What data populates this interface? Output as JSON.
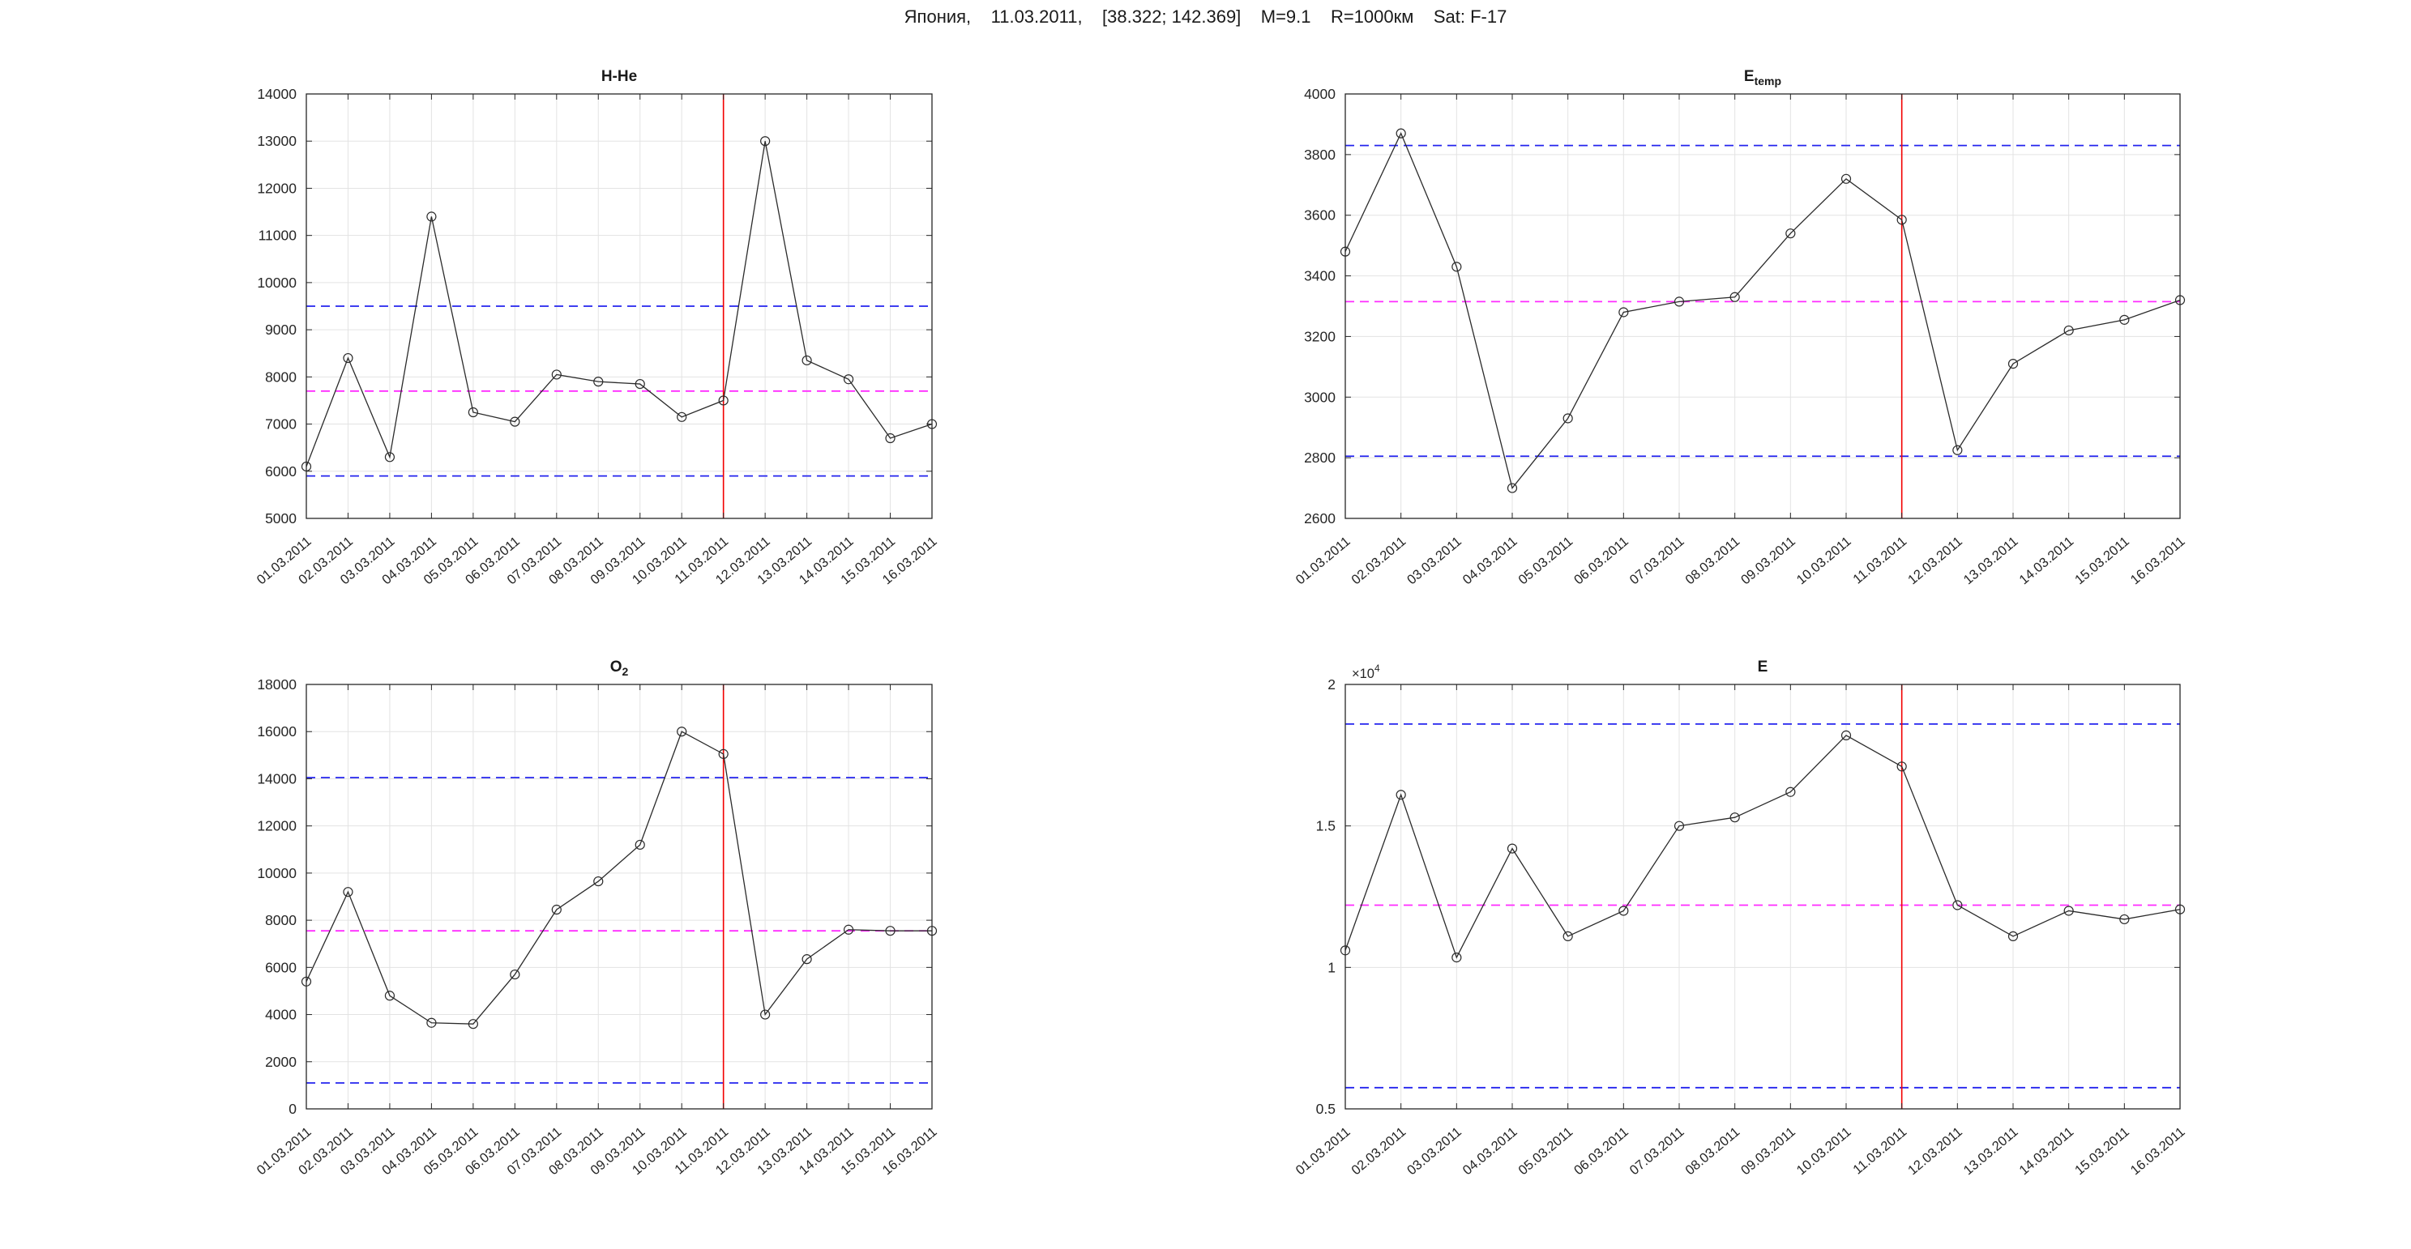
{
  "header": {
    "title": "Япония,    11.03.2011,    [38.322; 142.369]    M=9.1    R=1000км    Sat: F-17"
  },
  "event": {
    "date": "11.03.2011"
  },
  "colors": {
    "series": "#2b2b2b",
    "bound_line": "#2424ee",
    "mean_line": "#ff2bff",
    "event_line": "#f20000",
    "grid": "#e3e3e3",
    "axis": "#262626",
    "text": "#262626"
  },
  "dates": [
    "01.03.2011",
    "02.03.2011",
    "03.03.2011",
    "04.03.2011",
    "05.03.2011",
    "06.03.2011",
    "07.03.2011",
    "08.03.2011",
    "09.03.2011",
    "10.03.2011",
    "11.03.2011",
    "12.03.2011",
    "13.03.2011",
    "14.03.2011",
    "15.03.2011",
    "16.03.2011"
  ],
  "chart_data": [
    {
      "id": "h-he",
      "type": "line",
      "title": "H-He",
      "title_sub": "",
      "ylim": [
        5000,
        14000
      ],
      "yticks": [
        5000,
        6000,
        7000,
        8000,
        9000,
        10000,
        11000,
        12000,
        13000,
        14000
      ],
      "ytick_labels": [
        "5000",
        "6000",
        "7000",
        "8000",
        "9000",
        "10000",
        "11000",
        "12000",
        "13000",
        "14000"
      ],
      "values": [
        6100,
        8400,
        6300,
        11400,
        7250,
        7050,
        8050,
        7900,
        7850,
        7150,
        7500,
        13000,
        8350,
        7950,
        6700,
        7000
      ],
      "hlines": {
        "upper": 9500,
        "mean": 7700,
        "lower": 5900
      },
      "red_line_date": "11.03.2011",
      "grid": true,
      "legend": "none"
    },
    {
      "id": "e-temp",
      "type": "line",
      "title": "E",
      "title_sub": "temp",
      "ylim": [
        2600,
        4000
      ],
      "yticks": [
        2600,
        2800,
        3000,
        3200,
        3400,
        3600,
        3800,
        4000
      ],
      "ytick_labels": [
        "2600",
        "2800",
        "3000",
        "3200",
        "3400",
        "3600",
        "3800",
        "4000"
      ],
      "values": [
        3480,
        3870,
        3430,
        2700,
        2930,
        3280,
        3315,
        3330,
        3540,
        3720,
        3585,
        2825,
        3110,
        3220,
        3255,
        3320
      ],
      "hlines": {
        "upper": 3830,
        "mean": 3315,
        "lower": 2805
      },
      "red_line_date": "11.03.2011",
      "grid": true,
      "legend": "none"
    },
    {
      "id": "o2",
      "type": "line",
      "title": "O",
      "title_sub": "2",
      "ylim": [
        0,
        18000
      ],
      "yticks": [
        0,
        2000,
        4000,
        6000,
        8000,
        10000,
        12000,
        14000,
        16000,
        18000
      ],
      "ytick_labels": [
        "0",
        "2000",
        "4000",
        "6000",
        "8000",
        "10000",
        "12000",
        "14000",
        "16000",
        "18000"
      ],
      "values": [
        5400,
        9200,
        4800,
        3650,
        3600,
        5700,
        8450,
        9650,
        11200,
        16000,
        15050,
        4000,
        6350,
        7600,
        7550,
        7550
      ],
      "hlines": {
        "upper": 14050,
        "mean": 7550,
        "lower": 1100
      },
      "red_line_date": "11.03.2011",
      "grid": true,
      "legend": "none"
    },
    {
      "id": "e",
      "type": "line",
      "title": "E",
      "title_sub": "",
      "ylim": [
        5000,
        20000
      ],
      "yticks": [
        5000,
        10000,
        15000,
        20000
      ],
      "ytick_labels": [
        "0.5",
        "1",
        "1.5",
        "2"
      ],
      "exp_label": "×10",
      "exp_sup": "4",
      "values": [
        10600,
        16100,
        10350,
        14200,
        11100,
        12000,
        15000,
        15300,
        16200,
        18200,
        17100,
        12200,
        11100,
        12000,
        11700,
        12050
      ],
      "hlines": {
        "upper": 18600,
        "mean": 12200,
        "lower": 5750
      },
      "red_line_date": "11.03.2011",
      "grid": true,
      "legend": "none"
    }
  ]
}
